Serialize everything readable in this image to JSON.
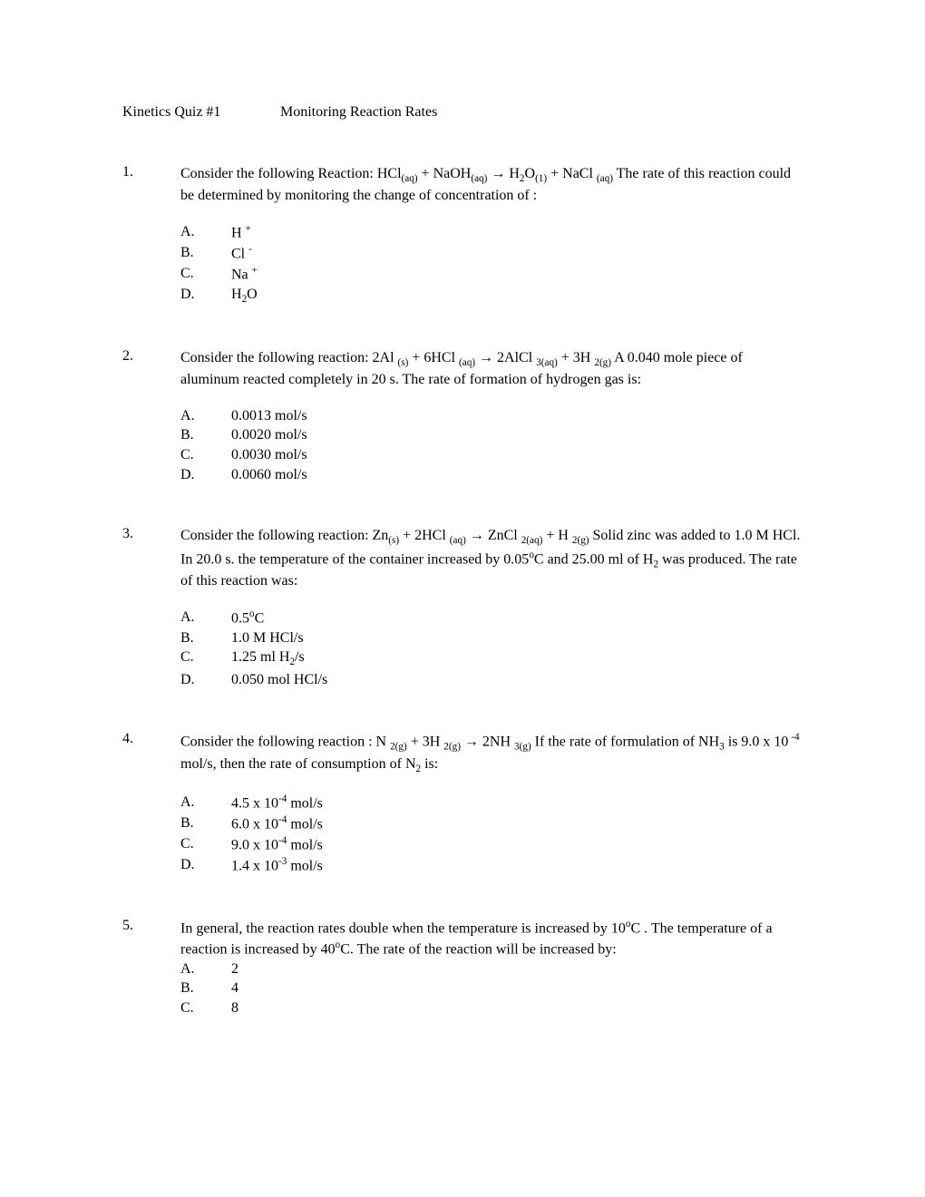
{
  "title": {
    "left": "Kinetics Quiz #1",
    "right": "Monitoring Reaction Rates"
  },
  "questions": [
    {
      "num": "1.",
      "text": "Consider the following Reaction:  HCl<sub>(aq)</sub>   +   NaOH<sub>(aq)</sub>   <span class='arrow'>→</span>   H<sub>2</sub>O<sub>(1)</sub>  +  NaCl <sub>(aq)</sub>  The rate of this reaction could be determined by monitoring the change of concentration of :",
      "choices": [
        {
          "l": "A.",
          "t": "H <sup>+</sup>"
        },
        {
          "l": "B.",
          "t": "Cl <sup>-</sup>"
        },
        {
          "l": "C.",
          "t": "Na <sup>+</sup>"
        },
        {
          "l": "D.",
          "t": "H<sub>2</sub>O"
        }
      ]
    },
    {
      "num": "2.",
      "text": "Consider the following reaction:  2Al <sub>(s)</sub>  +  6HCl <sub>(aq)</sub>  <span class='arrow'>→</span>   2AlCl <sub>3(aq)</sub> +  3H <sub>2(g)</sub>  A 0.040 mole piece of aluminum reacted completely in 20 s. The rate of formation of hydrogen gas is:",
      "choices": [
        {
          "l": "A.",
          "t": "0.0013 mol/s"
        },
        {
          "l": "B.",
          "t": "0.0020 mol/s"
        },
        {
          "l": "C.",
          "t": "0.0030 mol/s"
        },
        {
          "l": "D.",
          "t": "0.0060 mol/s"
        }
      ]
    },
    {
      "num": "3.",
      "text": "Consider the following reaction: Zn<sub>(s)</sub>  +  2HCl <sub>(aq)</sub>  <span class='arrow'>→</span>   ZnCl <sub>2(aq)</sub>  +  H <sub>2(g)</sub>  Solid zinc was added to 1.0 M HCl.  In 20.0 s. the temperature of the container increased by 0.05<sup>o</sup>C and 25.00 ml of H<sub>2</sub> was produced. The rate of this reaction was:",
      "choices": [
        {
          "l": "A.",
          "t": "0.5<sup>o</sup>C"
        },
        {
          "l": "B.",
          "t": "1.0 M HCl/s"
        },
        {
          "l": "C.",
          "t": "1.25 ml H<sub>2</sub>/s"
        },
        {
          "l": "D.",
          "t": "0.050 mol HCl/s"
        }
      ]
    },
    {
      "num": "4.",
      "text": "Consider the following reaction : N <sub>2(g)</sub>  +  3H <sub>2(g)</sub>  <span class='arrow'>→</span>  2NH <sub>3(g)</sub>  If the rate of formulation of NH<sub>3</sub> is 9.0 x 10<sup> -4</sup> mol/s, then the rate of consumption of N<sub>2</sub> is:",
      "choices": [
        {
          "l": "A.",
          "t": "4.5 x 10<sup>-4</sup> mol/s"
        },
        {
          "l": "B.",
          "t": "6.0 x 10<sup>-4</sup> mol/s"
        },
        {
          "l": "C.",
          "t": "9.0 x 10<sup>-4</sup> mol/s"
        },
        {
          "l": "D.",
          "t": "1.4 x 10<sup>-3</sup> mol/s"
        }
      ]
    },
    {
      "num": "5.",
      "text": "In general, the reaction rates double when the temperature is increased by 10<sup>o</sup>C . The temperature of a reaction  is increased by 40<sup>o</sup>C. The rate of the reaction will be increased by:",
      "tight": true,
      "choices": [
        {
          "l": "A.",
          "t": "2"
        },
        {
          "l": "B.",
          "t": "4"
        },
        {
          "l": "C.",
          "t": "8"
        }
      ]
    }
  ]
}
